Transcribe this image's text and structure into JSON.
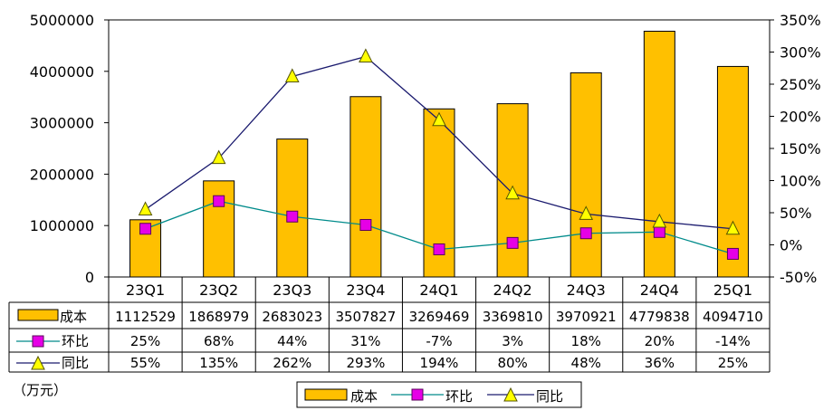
{
  "chart_data": {
    "type": "bar",
    "categories": [
      "23Q1",
      "23Q2",
      "23Q3",
      "23Q4",
      "24Q1",
      "24Q2",
      "24Q3",
      "24Q4",
      "25Q1"
    ],
    "y_left": {
      "lim": [
        0,
        5000000
      ],
      "ticks": [
        "0",
        "1000000",
        "2000000",
        "3000000",
        "4000000",
        "5000000"
      ]
    },
    "y_right": {
      "lim": [
        -50,
        350
      ],
      "ticks": [
        "-50%",
        "0%",
        "50%",
        "100%",
        "150%",
        "200%",
        "250%",
        "300%",
        "350%"
      ]
    },
    "unit_note": "（万元）",
    "series": [
      {
        "name": "成本",
        "kind": "bar",
        "axis": "left",
        "color": "#FFC000",
        "values": [
          1112529,
          1868979,
          2683023,
          3507827,
          3269469,
          3369810,
          3970921,
          4779838,
          4094710
        ],
        "labels": [
          "1112529",
          "1868979",
          "2683023",
          "3507827",
          "3269469",
          "3369810",
          "3970921",
          "4779838",
          "4094710"
        ]
      },
      {
        "name": "环比",
        "kind": "line",
        "axis": "right",
        "marker": "square",
        "color": "#008B8B",
        "marker_color": "#E600E6",
        "values": [
          25,
          68,
          44,
          31,
          -7,
          3,
          18,
          20,
          -14
        ],
        "labels": [
          "25%",
          "68%",
          "44%",
          "31%",
          "-7%",
          "3%",
          "18%",
          "20%",
          "-14%"
        ]
      },
      {
        "name": "同比",
        "kind": "line",
        "axis": "right",
        "marker": "triangle",
        "color": "#1A1A6E",
        "marker_color": "#FFFF00",
        "values": [
          55,
          135,
          262,
          293,
          194,
          80,
          48,
          36,
          25
        ],
        "labels": [
          "55%",
          "135%",
          "262%",
          "293%",
          "194%",
          "80%",
          "48%",
          "36%",
          "25%"
        ]
      }
    ],
    "grid": false,
    "legend": "bottom-center"
  }
}
